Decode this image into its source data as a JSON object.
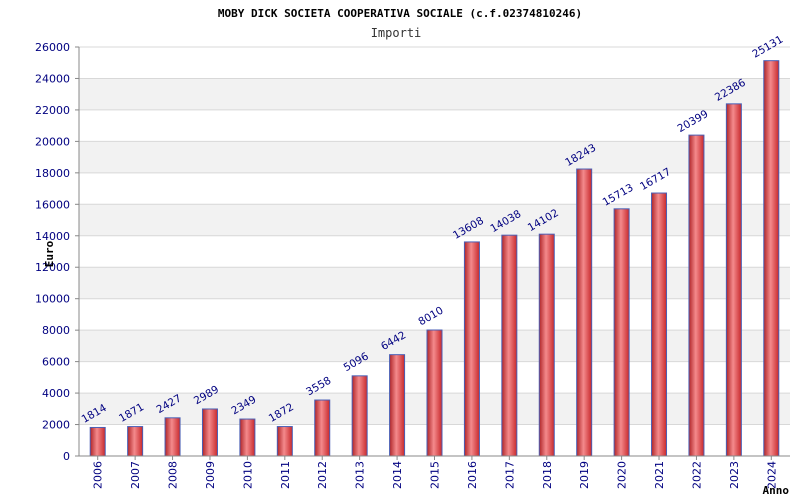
{
  "chart_data": {
    "type": "bar",
    "title": "MOBY DICK SOCIETA COOPERATIVA SOCIALE (c.f.02374810246)",
    "subtitle": "Importi",
    "xlabel": "Anno",
    "ylabel": "Euro",
    "ylim": [
      0,
      26000
    ],
    "yticks": [
      0,
      2000,
      4000,
      6000,
      8000,
      10000,
      12000,
      14000,
      16000,
      18000,
      20000,
      22000,
      24000,
      26000
    ],
    "categories": [
      "2006",
      "2007",
      "2008",
      "2009",
      "2010",
      "2011",
      "2012",
      "2013",
      "2014",
      "2015",
      "2016",
      "2017",
      "2018",
      "2019",
      "2020",
      "2021",
      "2022",
      "2023",
      "2024"
    ],
    "values": [
      1814,
      1871,
      2427,
      2989,
      2349,
      1872,
      3558,
      5096,
      6442,
      8010,
      13608,
      14038,
      14102,
      18243,
      15713,
      16717,
      20399,
      22386,
      25131
    ],
    "grid": true,
    "legend": "none",
    "colors": {
      "bar": "#e8474a",
      "bar_edge": "#4a5fb5",
      "band": "#f2f2f2",
      "text": "#000080"
    }
  }
}
